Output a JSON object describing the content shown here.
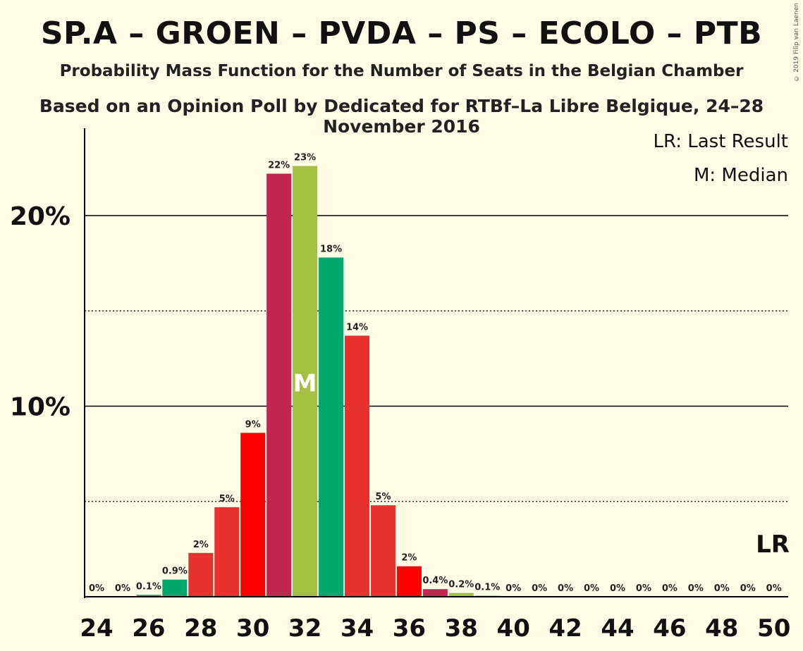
{
  "header": {
    "title": "SP.A – GROEN – PVDA – PS – ECOLO – PTB",
    "subtitle1": "Probability Mass Function for the Number of Seats in the Belgian Chamber",
    "subtitle2": "Based on an Opinion Poll by Dedicated for RTBf–La Libre Belgique, 24–28 November 2016",
    "copyright": "© 2019 Filip van Laenen"
  },
  "chart_data": {
    "type": "bar",
    "x": [
      24,
      25,
      26,
      27,
      28,
      29,
      30,
      31,
      32,
      33,
      34,
      35,
      36,
      37,
      38,
      39,
      40,
      41,
      42,
      43,
      44,
      45,
      46,
      47,
      48,
      49,
      50
    ],
    "values": [
      0,
      0,
      0.1,
      0.9,
      2.3,
      4.7,
      8.6,
      22.2,
      22.6,
      17.8,
      13.7,
      4.8,
      1.6,
      0.4,
      0.2,
      0.05,
      0,
      0,
      0,
      0,
      0,
      0,
      0,
      0,
      0,
      0,
      0
    ],
    "data_labels": [
      "0%",
      "0%",
      "0.1%",
      "0.9%",
      "2%",
      "5%",
      "9%",
      "22%",
      "23%",
      "18%",
      "14%",
      "5%",
      "2%",
      "0.4%",
      "0.2%",
      "0.1%",
      "0%",
      "0%",
      "0%",
      "0%",
      "0%",
      "0%",
      "0%",
      "0%",
      "0%",
      "0%",
      "0%"
    ],
    "bar_colors": [
      "#00a86b",
      "#e8302e",
      "#00a86b",
      "#00a86b",
      "#e8302e",
      "#e8302e",
      "#ff0000",
      "#c0264f",
      "#a4c040",
      "#00a86b",
      "#e8302e",
      "#e8302e",
      "#ff0000",
      "#c0264f",
      "#a4c040",
      "#00a86b",
      "#e8302e",
      "#e8302e",
      "#ff0000",
      "#c0264f",
      "#a4c040",
      "#00a86b",
      "#e8302e",
      "#e8302e",
      "#ff0000",
      "#c0264f",
      "#a4c040"
    ],
    "x_tick_labels": [
      "24",
      "26",
      "28",
      "30",
      "32",
      "34",
      "36",
      "38",
      "40",
      "42",
      "44",
      "46",
      "48",
      "50"
    ],
    "y_tick_labels": [
      "10%",
      "20%"
    ],
    "ylim": [
      0,
      24.5
    ],
    "major_gridlines": [
      10,
      20
    ],
    "minor_gridlines": [
      5,
      15
    ],
    "median": 32,
    "median_marker": "M",
    "last_result_marker": "LR",
    "legend": {
      "last_result": "LR: Last Result",
      "median": "M: Median"
    }
  }
}
